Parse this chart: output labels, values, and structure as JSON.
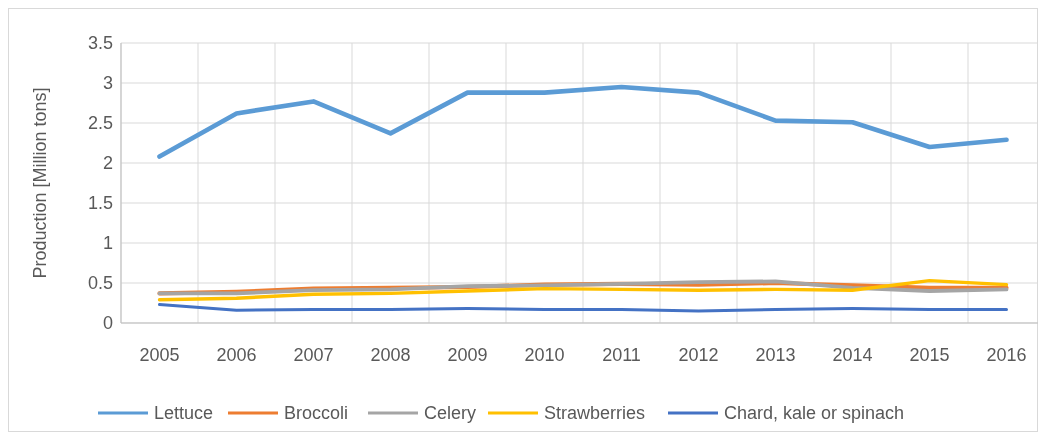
{
  "chart_data": {
    "type": "line",
    "ylabel": "Production [Million tons]",
    "categories": [
      "2005",
      "2006",
      "2007",
      "2008",
      "2009",
      "2010",
      "2011",
      "2012",
      "2013",
      "2014",
      "2015",
      "2016"
    ],
    "series": [
      {
        "name": "Lettuce",
        "color": "#5b9bd5",
        "values": [
          2.08,
          2.62,
          2.77,
          2.37,
          2.88,
          2.88,
          2.95,
          2.88,
          2.53,
          2.51,
          2.2,
          2.29
        ]
      },
      {
        "name": "Broccoli",
        "color": "#ed7d31",
        "values": [
          0.37,
          0.39,
          0.43,
          0.44,
          0.45,
          0.48,
          0.49,
          0.48,
          0.5,
          0.47,
          0.44,
          0.44
        ]
      },
      {
        "name": "Celery",
        "color": "#a5a5a5",
        "values": [
          0.37,
          0.37,
          0.41,
          0.42,
          0.46,
          0.47,
          0.49,
          0.51,
          0.52,
          0.44,
          0.4,
          0.42
        ]
      },
      {
        "name": "Strawberries",
        "color": "#ffc000",
        "values": [
          0.29,
          0.31,
          0.36,
          0.37,
          0.4,
          0.43,
          0.42,
          0.41,
          0.42,
          0.41,
          0.53,
          0.48
        ]
      },
      {
        "name": "Chard, kale or spinach",
        "color": "#4472c4",
        "values": [
          0.23,
          0.16,
          0.17,
          0.17,
          0.18,
          0.17,
          0.17,
          0.15,
          0.17,
          0.18,
          0.17,
          0.17
        ]
      }
    ],
    "ylim": [
      0,
      3.5
    ],
    "yticks": [
      0,
      0.5,
      1,
      1.5,
      2,
      2.5,
      3,
      3.5
    ],
    "grid": true,
    "legend": "bottom",
    "marker": "none",
    "line_style": "solid"
  }
}
